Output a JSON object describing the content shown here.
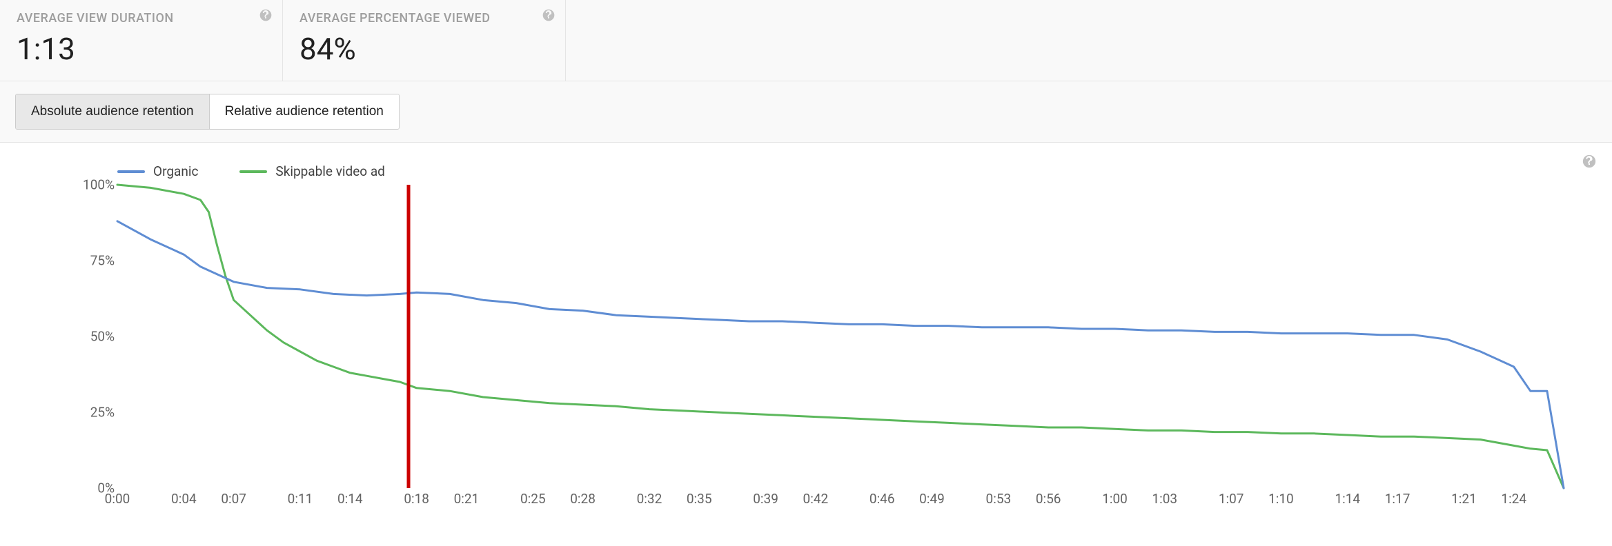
{
  "metrics": [
    {
      "label": "AVERAGE VIEW DURATION",
      "value": "1:13"
    },
    {
      "label": "AVERAGE PERCENTAGE VIEWED",
      "value": "84%"
    }
  ],
  "tabs": {
    "absolute": "Absolute audience retention",
    "relative": "Relative audience retention",
    "active": "absolute"
  },
  "chart": {
    "type": "line",
    "background_color": "#ffffff",
    "y_axis": {
      "min": 0,
      "max": 100,
      "ticks": [
        0,
        25,
        50,
        75,
        100
      ],
      "tick_labels": [
        "0%",
        "25%",
        "50%",
        "75%",
        "100%"
      ],
      "label_color": "#636363",
      "label_fontsize": 19
    },
    "x_axis": {
      "min_sec": 0,
      "max_sec": 87,
      "tick_seconds": [
        0,
        4,
        7,
        11,
        14,
        18,
        21,
        25,
        28,
        32,
        35,
        39,
        42,
        46,
        49,
        53,
        56,
        60,
        63,
        67,
        70,
        74,
        77,
        81,
        84
      ],
      "tick_labels": [
        "0:00",
        "0:04",
        "0:07",
        "0:11",
        "0:14",
        "0:18",
        "0:21",
        "0:25",
        "0:28",
        "0:32",
        "0:35",
        "0:39",
        "0:42",
        "0:46",
        "0:49",
        "0:53",
        "0:56",
        "1:00",
        "1:03",
        "1:07",
        "1:10",
        "1:14",
        "1:17",
        "1:21",
        "1:24"
      ],
      "label_color": "#636363",
      "label_fontsize": 19
    },
    "legend": {
      "position": "top-left",
      "items": [
        {
          "key": "organic",
          "label": "Organic",
          "color": "#5f8dd3"
        },
        {
          "key": "skippable",
          "label": "Skippable video ad",
          "color": "#5cb85c"
        }
      ]
    },
    "marker": {
      "x_sec": 17.5,
      "color": "#cc0000",
      "width": 5
    },
    "line_width": 3,
    "series": {
      "organic": {
        "color": "#5f8dd3",
        "points": [
          [
            0,
            88
          ],
          [
            2,
            82
          ],
          [
            4,
            77
          ],
          [
            5,
            73
          ],
          [
            7,
            68
          ],
          [
            9,
            66
          ],
          [
            11,
            65.5
          ],
          [
            13,
            64
          ],
          [
            15,
            63.5
          ],
          [
            17,
            64
          ],
          [
            18,
            64.5
          ],
          [
            20,
            64
          ],
          [
            22,
            62
          ],
          [
            24,
            61
          ],
          [
            26,
            59
          ],
          [
            28,
            58.5
          ],
          [
            30,
            57
          ],
          [
            32,
            56.5
          ],
          [
            34,
            56
          ],
          [
            36,
            55.5
          ],
          [
            38,
            55
          ],
          [
            40,
            55
          ],
          [
            42,
            54.5
          ],
          [
            44,
            54
          ],
          [
            46,
            54
          ],
          [
            48,
            53.5
          ],
          [
            50,
            53.5
          ],
          [
            52,
            53
          ],
          [
            54,
            53
          ],
          [
            56,
            53
          ],
          [
            58,
            52.5
          ],
          [
            60,
            52.5
          ],
          [
            62,
            52
          ],
          [
            64,
            52
          ],
          [
            66,
            51.5
          ],
          [
            68,
            51.5
          ],
          [
            70,
            51
          ],
          [
            72,
            51
          ],
          [
            74,
            51
          ],
          [
            76,
            50.5
          ],
          [
            78,
            50.5
          ],
          [
            80,
            49
          ],
          [
            82,
            45
          ],
          [
            84,
            40
          ],
          [
            85,
            32
          ],
          [
            86,
            32
          ],
          [
            87,
            0
          ]
        ]
      },
      "skippable": {
        "color": "#5cb85c",
        "points": [
          [
            0,
            100
          ],
          [
            2,
            99
          ],
          [
            4,
            97
          ],
          [
            5,
            95
          ],
          [
            5.5,
            91
          ],
          [
            6,
            80
          ],
          [
            6.5,
            70
          ],
          [
            7,
            62
          ],
          [
            8,
            57
          ],
          [
            9,
            52
          ],
          [
            10,
            48
          ],
          [
            11,
            45
          ],
          [
            12,
            42
          ],
          [
            13,
            40
          ],
          [
            14,
            38
          ],
          [
            15,
            37
          ],
          [
            16,
            36
          ],
          [
            17,
            35
          ],
          [
            18,
            33
          ],
          [
            20,
            32
          ],
          [
            22,
            30
          ],
          [
            24,
            29
          ],
          [
            26,
            28
          ],
          [
            28,
            27.5
          ],
          [
            30,
            27
          ],
          [
            32,
            26
          ],
          [
            34,
            25.5
          ],
          [
            36,
            25
          ],
          [
            38,
            24.5
          ],
          [
            40,
            24
          ],
          [
            42,
            23.5
          ],
          [
            44,
            23
          ],
          [
            46,
            22.5
          ],
          [
            48,
            22
          ],
          [
            50,
            21.5
          ],
          [
            52,
            21
          ],
          [
            54,
            20.5
          ],
          [
            56,
            20
          ],
          [
            58,
            20
          ],
          [
            60,
            19.5
          ],
          [
            62,
            19
          ],
          [
            64,
            19
          ],
          [
            66,
            18.5
          ],
          [
            68,
            18.5
          ],
          [
            70,
            18
          ],
          [
            72,
            18
          ],
          [
            74,
            17.5
          ],
          [
            76,
            17
          ],
          [
            78,
            17
          ],
          [
            80,
            16.5
          ],
          [
            82,
            16
          ],
          [
            84,
            14
          ],
          [
            85,
            13
          ],
          [
            86,
            12.5
          ],
          [
            87,
            0
          ]
        ]
      }
    }
  },
  "colors": {
    "page_bg": "#ffffff",
    "panel_bg": "#f9f9f9",
    "border": "#e5e5e5",
    "text_muted": "#9e9e9e",
    "text_primary": "#212121",
    "help_icon": "#c0c0c0"
  }
}
